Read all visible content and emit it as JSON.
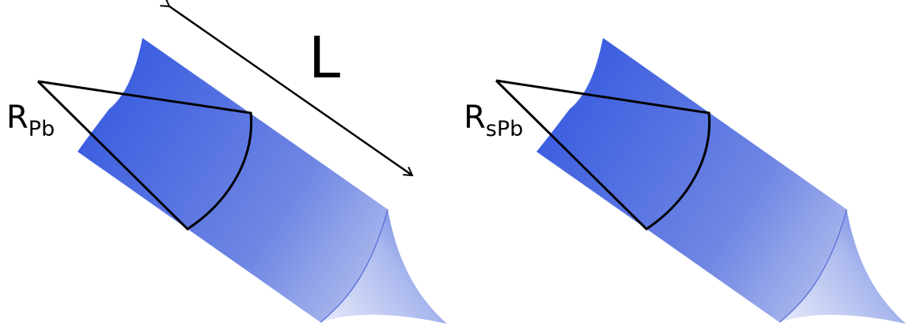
{
  "panels": [
    {
      "id": "left",
      "radius_symbol": "R",
      "radius_subscript": "Pb"
    },
    {
      "id": "right",
      "radius_symbol": "R",
      "radius_subscript": "sPb"
    }
  ],
  "length_label": "L",
  "colors": {
    "tube_dark": "#3d5fe0",
    "tube_mid": "#6f86e3",
    "tube_light": "#c5cff2",
    "cusp_edge": "#5569d6",
    "outline": "#000000"
  }
}
